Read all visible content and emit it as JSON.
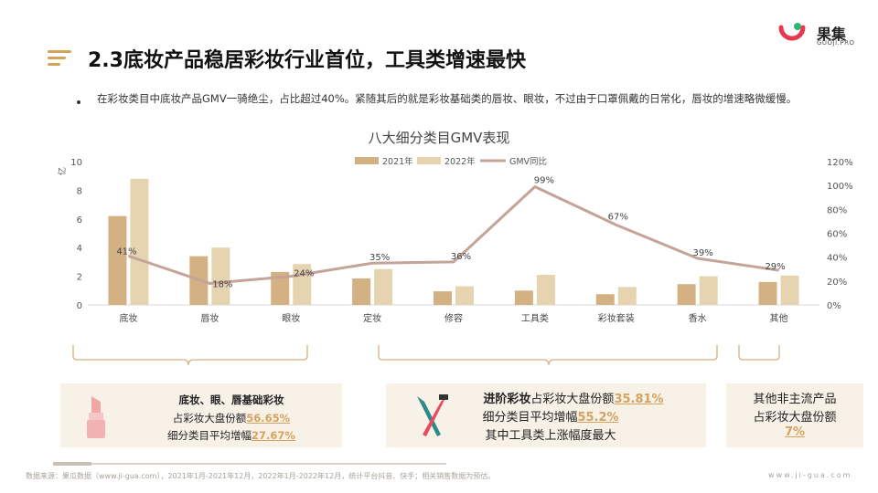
{
  "header": {
    "title": "2.3底妆产品稳居彩妆行业首位，工具类增速最快",
    "logo_text": "果集",
    "logo_sub": "GUOJI.PRO"
  },
  "bullet": {
    "text": "在彩妆类目中底妆产品GMV一骑绝尘，占比超过40%。紧随其后的就是彩妆基础类的唇妆、眼妆，不过由于口罩佩戴的日常化，唇妆的增速略微缓慢。"
  },
  "chart_data": {
    "type": "bar",
    "title": "八大细分类目GMV表现",
    "ylabel": "亿",
    "categories": [
      "底妆",
      "唇妆",
      "眼妆",
      "定妆",
      "修容",
      "工具类",
      "彩妆套装",
      "香水",
      "其他"
    ],
    "series": [
      {
        "name": "2021年",
        "type": "bar",
        "color": "#d4b183",
        "values": [
          6.2,
          3.4,
          2.3,
          1.85,
          0.95,
          1.0,
          0.75,
          1.45,
          1.6
        ]
      },
      {
        "name": "2022年",
        "type": "bar",
        "color": "#e6d3b0",
        "values": [
          8.8,
          4.0,
          2.85,
          2.5,
          1.3,
          2.1,
          1.25,
          2.0,
          2.05
        ]
      },
      {
        "name": "GMV同比",
        "type": "line",
        "axis": "right",
        "color": "#c4a498",
        "values": [
          41,
          18,
          24,
          35,
          36,
          99,
          67,
          39,
          29
        ]
      }
    ],
    "line_labels": [
      "41%",
      "18%",
      "24%",
      "35%",
      "36%",
      "99%",
      "67%",
      "39%",
      "29%"
    ],
    "y_left": {
      "min": 0,
      "max": 10,
      "ticks": [
        "0",
        "2",
        "4",
        "6",
        "8",
        "10"
      ]
    },
    "y_right": {
      "min": 0,
      "max": 120,
      "ticks": [
        "0%",
        "20%",
        "40%",
        "60%",
        "80%",
        "100%",
        "120%"
      ]
    },
    "legend_position": "top"
  },
  "summary_boxes": {
    "left": {
      "title": "底妆、眼、唇基础彩妆",
      "line1_prefix": "占彩妆大盘份额",
      "line1_value": "56.65%",
      "line2_prefix": "细分类目平均增幅",
      "line2_value": "27.67%"
    },
    "middle": {
      "line1_bold": "进阶彩妆",
      "line1_prefix": "占彩妆大盘份额",
      "line1_value": "35.81%",
      "line2_prefix": "细分类目平均增幅",
      "line2_value": "55.2%",
      "line3": "其中工具类上涨幅度最大"
    },
    "right": {
      "line1": "其他非主流产品",
      "line2": "占彩妆大盘份额",
      "line3_value": "7%"
    }
  },
  "footer": {
    "source": "数据来源：果瓜数据（www.ji-gua.com），2021年1月-2021年12月，2022年1月-2022年12月，统计平台抖音、快手；相关销售数据为预估。",
    "url": "www.ji-gua.com"
  },
  "colors": {
    "accent": "#d4a35e",
    "bar2021": "#d4b183",
    "bar2022": "#e6d3b0",
    "line": "#c4a498",
    "box_bg": "#f8f1e8"
  }
}
